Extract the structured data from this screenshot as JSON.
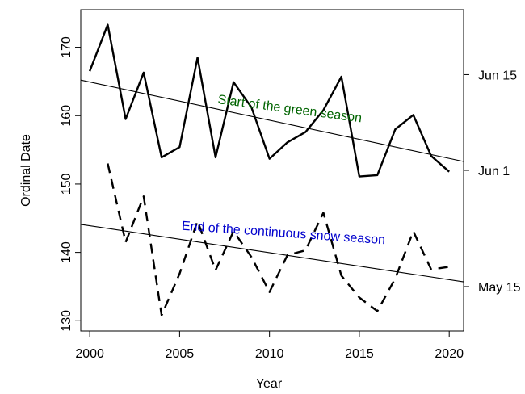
{
  "chart_data": {
    "type": "line",
    "xlabel": "Year",
    "ylabel": "Ordinal Date",
    "xlim": [
      1999.5,
      2020.8
    ],
    "ylim": [
      128.5,
      175.5
    ],
    "xticks": [
      2000,
      2005,
      2010,
      2015,
      2020
    ],
    "yticks": [
      130,
      140,
      150,
      160,
      170
    ],
    "right_axis": {
      "ticks": [
        {
          "value": 166,
          "label": "Jun 15"
        },
        {
          "value": 152,
          "label": "Jun 1"
        },
        {
          "value": 135,
          "label": "May 15"
        }
      ]
    },
    "series": [
      {
        "style": "solid",
        "x": [
          2000,
          2001,
          2002,
          2003,
          2004,
          2005,
          2006,
          2007,
          2008,
          2009,
          2010,
          2011,
          2012,
          2013,
          2014,
          2015,
          2016,
          2017,
          2018,
          2019,
          2020
        ],
        "y": [
          166.5,
          173.3,
          159.5,
          166.3,
          153.9,
          155.4,
          168.5,
          153.9,
          164.9,
          161.2,
          153.7,
          156.1,
          157.6,
          160.8,
          165.7,
          151.1,
          151.3,
          158.0,
          160.1,
          154.1,
          151.8
        ],
        "trend": {
          "x": [
            1999.5,
            2020.8
          ],
          "y": [
            165.2,
            153.3
          ]
        }
      },
      {
        "style": "dashed",
        "x": [
          2001,
          2002,
          2003,
          2004,
          2005,
          2006,
          2007,
          2008,
          2009,
          2010,
          2011,
          2012,
          2013,
          2014,
          2015,
          2016,
          2017,
          2018,
          2019,
          2020
        ],
        "y": [
          153.0,
          141.5,
          148.2,
          130.8,
          136.9,
          144.6,
          137.4,
          143.1,
          139.3,
          134.2,
          139.6,
          140.3,
          145.8,
          136.6,
          133.4,
          131.4,
          136.2,
          143.1,
          137.5,
          137.9
        ],
        "trend": {
          "x": [
            1999.5,
            2020.8
          ],
          "y": [
            144.1,
            135.7
          ]
        }
      }
    ],
    "annotations": [
      {
        "text": "Start of the green season",
        "color": "#006400",
        "x": 2007.1,
        "y": 161.8,
        "angle": 7.5
      },
      {
        "text": "End of the continuous snow season",
        "color": "#0000cd",
        "x": 2005.1,
        "y": 143.3,
        "angle": 4
      }
    ]
  }
}
